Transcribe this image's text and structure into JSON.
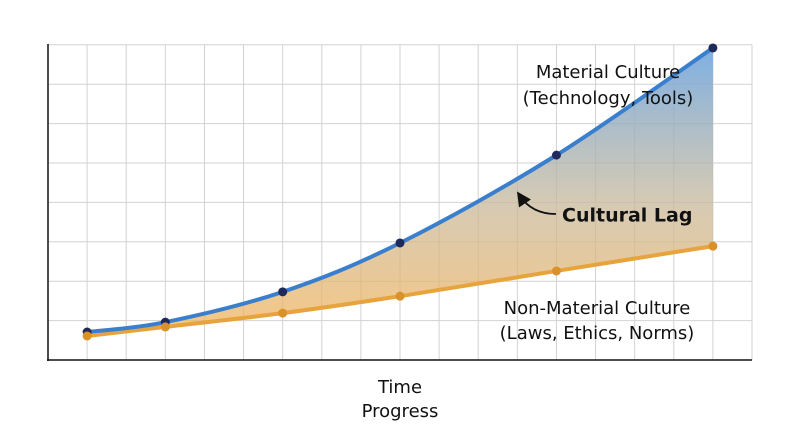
{
  "chart_data": {
    "type": "line",
    "x_label": [
      "Time",
      "Progress"
    ],
    "annotation": "Cultural Lag",
    "x": [
      1,
      3,
      6,
      9,
      13,
      17
    ],
    "series": [
      {
        "name": [
          "Material Culture",
          "(Technology, Tools)"
        ],
        "color": "#3a7fce",
        "marker_color": "#1f2a5c",
        "values": [
          0.71,
          0.96,
          1.73,
          2.97,
          5.2,
          7.92
        ]
      },
      {
        "name": [
          "Non-Material Culture",
          "(Laws, Ethics, Norms)"
        ],
        "color": "#e8a43c",
        "marker_color": "#d9922a",
        "values": [
          0.61,
          0.84,
          1.19,
          1.62,
          2.26,
          2.89
        ]
      }
    ],
    "xlim": [
      0,
      18
    ],
    "ylim": [
      0,
      8
    ],
    "xticks": [
      0,
      1,
      2,
      3,
      4,
      5,
      6,
      7,
      8,
      9,
      10,
      11,
      12,
      13,
      14,
      15,
      16,
      17,
      18
    ],
    "yticks": [
      0,
      1,
      2,
      3,
      4,
      5,
      6,
      7,
      8
    ],
    "grid": true
  }
}
